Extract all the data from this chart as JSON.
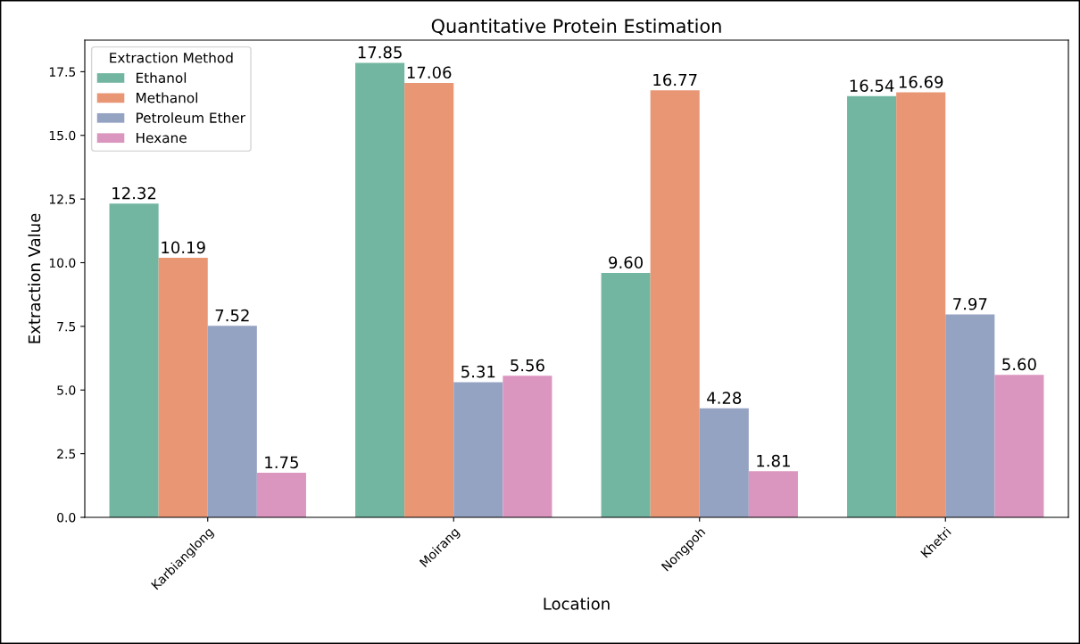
{
  "chart_data": {
    "type": "bar",
    "title": "Quantitative Protein Estimation",
    "xlabel": "Location",
    "ylabel": "Extraction Value",
    "legend_title": "Extraction Method",
    "categories": [
      "Karbianglong",
      "Moirang",
      "Nongpoh",
      "Khetri"
    ],
    "series": [
      {
        "name": "Ethanol",
        "color": "#72b6a1",
        "values": [
          12.32,
          17.85,
          9.6,
          16.54
        ],
        "value_labels": [
          "12.32",
          "17.85",
          "9.60",
          "16.54"
        ]
      },
      {
        "name": "Methanol",
        "color": "#e99675",
        "values": [
          10.19,
          17.06,
          16.77,
          16.69
        ],
        "value_labels": [
          "10.19",
          "17.06",
          "16.77",
          "16.69"
        ]
      },
      {
        "name": "Petroleum Ether",
        "color": "#95a3c3",
        "values": [
          7.52,
          5.31,
          4.28,
          7.97
        ],
        "value_labels": [
          "7.52",
          "5.31",
          "4.28",
          "7.97"
        ]
      },
      {
        "name": "Hexane",
        "color": "#db96c0",
        "values": [
          1.75,
          5.56,
          1.81,
          5.6
        ],
        "value_labels": [
          "1.75",
          "5.56",
          "1.81",
          "5.60"
        ]
      }
    ],
    "ylim": [
      0,
      18.74
    ],
    "yticks": [
      {
        "value": 0,
        "label": "0.0"
      },
      {
        "value": 2.5,
        "label": "2.5"
      },
      {
        "value": 5,
        "label": "5.0"
      },
      {
        "value": 7.5,
        "label": "7.5"
      },
      {
        "value": 10,
        "label": "10.0"
      },
      {
        "value": 12.5,
        "label": "12.5"
      },
      {
        "value": 15,
        "label": "15.0"
      },
      {
        "value": 17.5,
        "label": "17.5"
      }
    ],
    "grid": false,
    "legend": "top left"
  }
}
